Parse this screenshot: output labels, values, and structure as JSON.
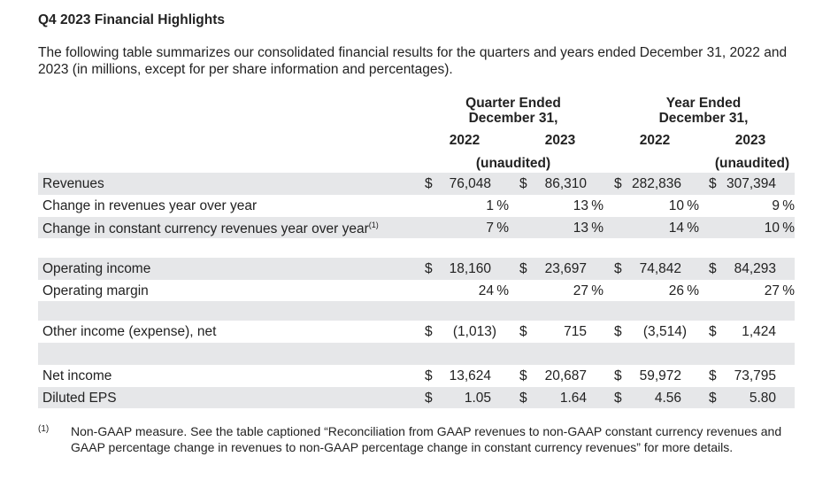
{
  "title": "Q4 2023 Financial Highlights",
  "intro": "The following table summarizes our consolidated financial results for the quarters and years ended December 31, 2022 and 2023 (in millions, except for per share information and percentages).",
  "header": {
    "quarter_line1": "Quarter Ended",
    "quarter_line2": "December 31,",
    "year_line1": "Year Ended",
    "year_line2": "December 31,",
    "years": [
      "2022",
      "2023",
      "2022",
      "2023"
    ],
    "unaudited_q": "(unaudited)",
    "unaudited_y": "(unaudited)"
  },
  "rows": [
    {
      "label": "Revenues",
      "shade": true,
      "cells": [
        [
          "$",
          "76,048",
          ""
        ],
        [
          "$",
          "86,310",
          ""
        ],
        [
          "$",
          "282,836",
          ""
        ],
        [
          "$",
          "307,394",
          ""
        ]
      ]
    },
    {
      "label": "Change in revenues year over year",
      "shade": false,
      "cells": [
        [
          "",
          "1",
          "%"
        ],
        [
          "",
          "13",
          "%"
        ],
        [
          "",
          "10",
          "%"
        ],
        [
          "",
          "9",
          "%"
        ]
      ]
    },
    {
      "label": "Change in constant currency revenues year over year",
      "sup": "(1)",
      "shade": true,
      "cells": [
        [
          "",
          "7",
          "%"
        ],
        [
          "",
          "13",
          "%"
        ],
        [
          "",
          "14",
          "%"
        ],
        [
          "",
          "10",
          "%"
        ]
      ]
    },
    {
      "label": "",
      "shade": false,
      "cells": []
    },
    {
      "label": "Operating income",
      "shade": true,
      "cells": [
        [
          "$",
          "18,160",
          ""
        ],
        [
          "$",
          "23,697",
          ""
        ],
        [
          "$",
          "74,842",
          ""
        ],
        [
          "$",
          "84,293",
          ""
        ]
      ]
    },
    {
      "label": "Operating margin",
      "shade": false,
      "cells": [
        [
          "",
          "24",
          "%"
        ],
        [
          "",
          "27",
          "%"
        ],
        [
          "",
          "26",
          "%"
        ],
        [
          "",
          "27",
          "%"
        ]
      ]
    },
    {
      "label": "",
      "shade": true,
      "cells": []
    },
    {
      "label": "Other income (expense), net",
      "shade": false,
      "cells": [
        [
          "$",
          "(1,013)",
          ""
        ],
        [
          "$",
          "715",
          ""
        ],
        [
          "$",
          "(3,514)",
          ""
        ],
        [
          "$",
          "1,424",
          ""
        ]
      ]
    },
    {
      "label": "",
      "shade": true,
      "cells": []
    },
    {
      "label": "Net income",
      "shade": false,
      "cells": [
        [
          "$",
          "13,624",
          ""
        ],
        [
          "$",
          "20,687",
          ""
        ],
        [
          "$",
          "59,972",
          ""
        ],
        [
          "$",
          "73,795",
          ""
        ]
      ]
    },
    {
      "label": "Diluted EPS",
      "shade": true,
      "cells": [
        [
          "$",
          "1.05",
          ""
        ],
        [
          "$",
          "1.64",
          ""
        ],
        [
          "$",
          "4.56",
          ""
        ],
        [
          "$",
          "5.80",
          ""
        ]
      ]
    }
  ],
  "footnote": {
    "marker": "(1)",
    "text": "Non-GAAP measure. See the table captioned “Reconciliation from GAAP revenues to non-GAAP constant currency revenues and GAAP percentage change in revenues to non-GAAP percentage change in constant currency revenues” for more details."
  }
}
